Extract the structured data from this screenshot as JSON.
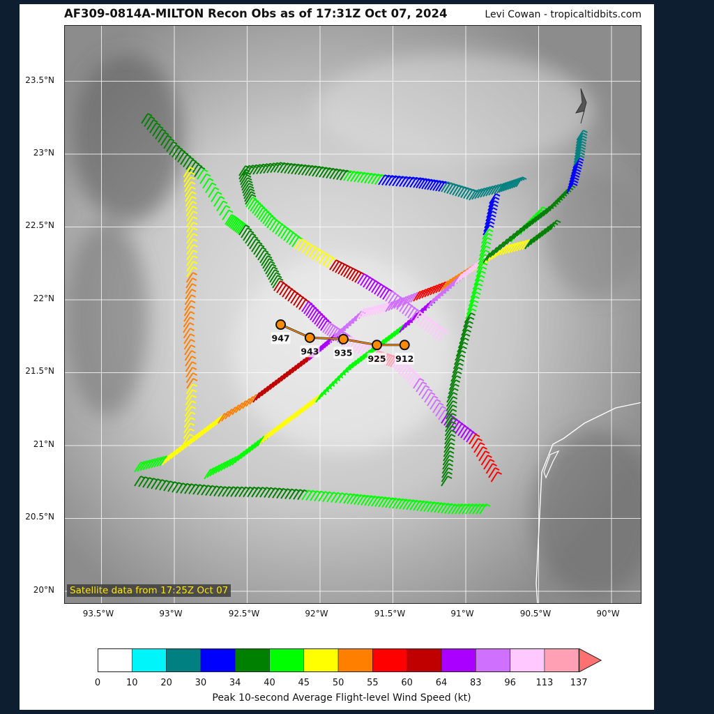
{
  "header": {
    "title": "AF309-0814A-MILTON Recon Obs as of 17:31Z Oct 07, 2024",
    "credit": "Levi Cowan - tropicaltidbits.com"
  },
  "map": {
    "lat_ticks": [
      "23.5°N",
      "23°N",
      "22.5°N",
      "22°N",
      "21.5°N",
      "21°N",
      "20.5°N",
      "20°N"
    ],
    "lon_ticks": [
      "93.5°W",
      "93°W",
      "92.5°W",
      "92°W",
      "91.5°W",
      "91°W",
      "90.5°W",
      "90°W"
    ],
    "satellite_note": "Satellite data from 17:25Z Oct 07",
    "pressure_fixes": [
      {
        "label": "947",
        "lon": -92.27,
        "lat": 21.83
      },
      {
        "label": "943",
        "lon": -92.07,
        "lat": 21.74
      },
      {
        "label": "935",
        "lon": -91.84,
        "lat": 21.73
      },
      {
        "label": "925",
        "lon": -91.61,
        "lat": 21.69
      },
      {
        "label": "912",
        "lon": -91.42,
        "lat": 21.69
      }
    ]
  },
  "colorbar": {
    "labels": [
      "0",
      "10",
      "20",
      "30",
      "34",
      "40",
      "45",
      "50",
      "55",
      "60",
      "64",
      "83",
      "96",
      "113",
      "137"
    ],
    "colors": [
      "#ffffff",
      "#00f5fa",
      "#008080",
      "#0000ff",
      "#008000",
      "#00ff00",
      "#ffff00",
      "#ff8000",
      "#ff0000",
      "#c00000",
      "#aa00ff",
      "#d070ff",
      "#ffc8ff",
      "#ffa0b4",
      "#ff7070"
    ],
    "title": "Peak 10-second Average Flight-level Wind Speed (kt)"
  }
}
